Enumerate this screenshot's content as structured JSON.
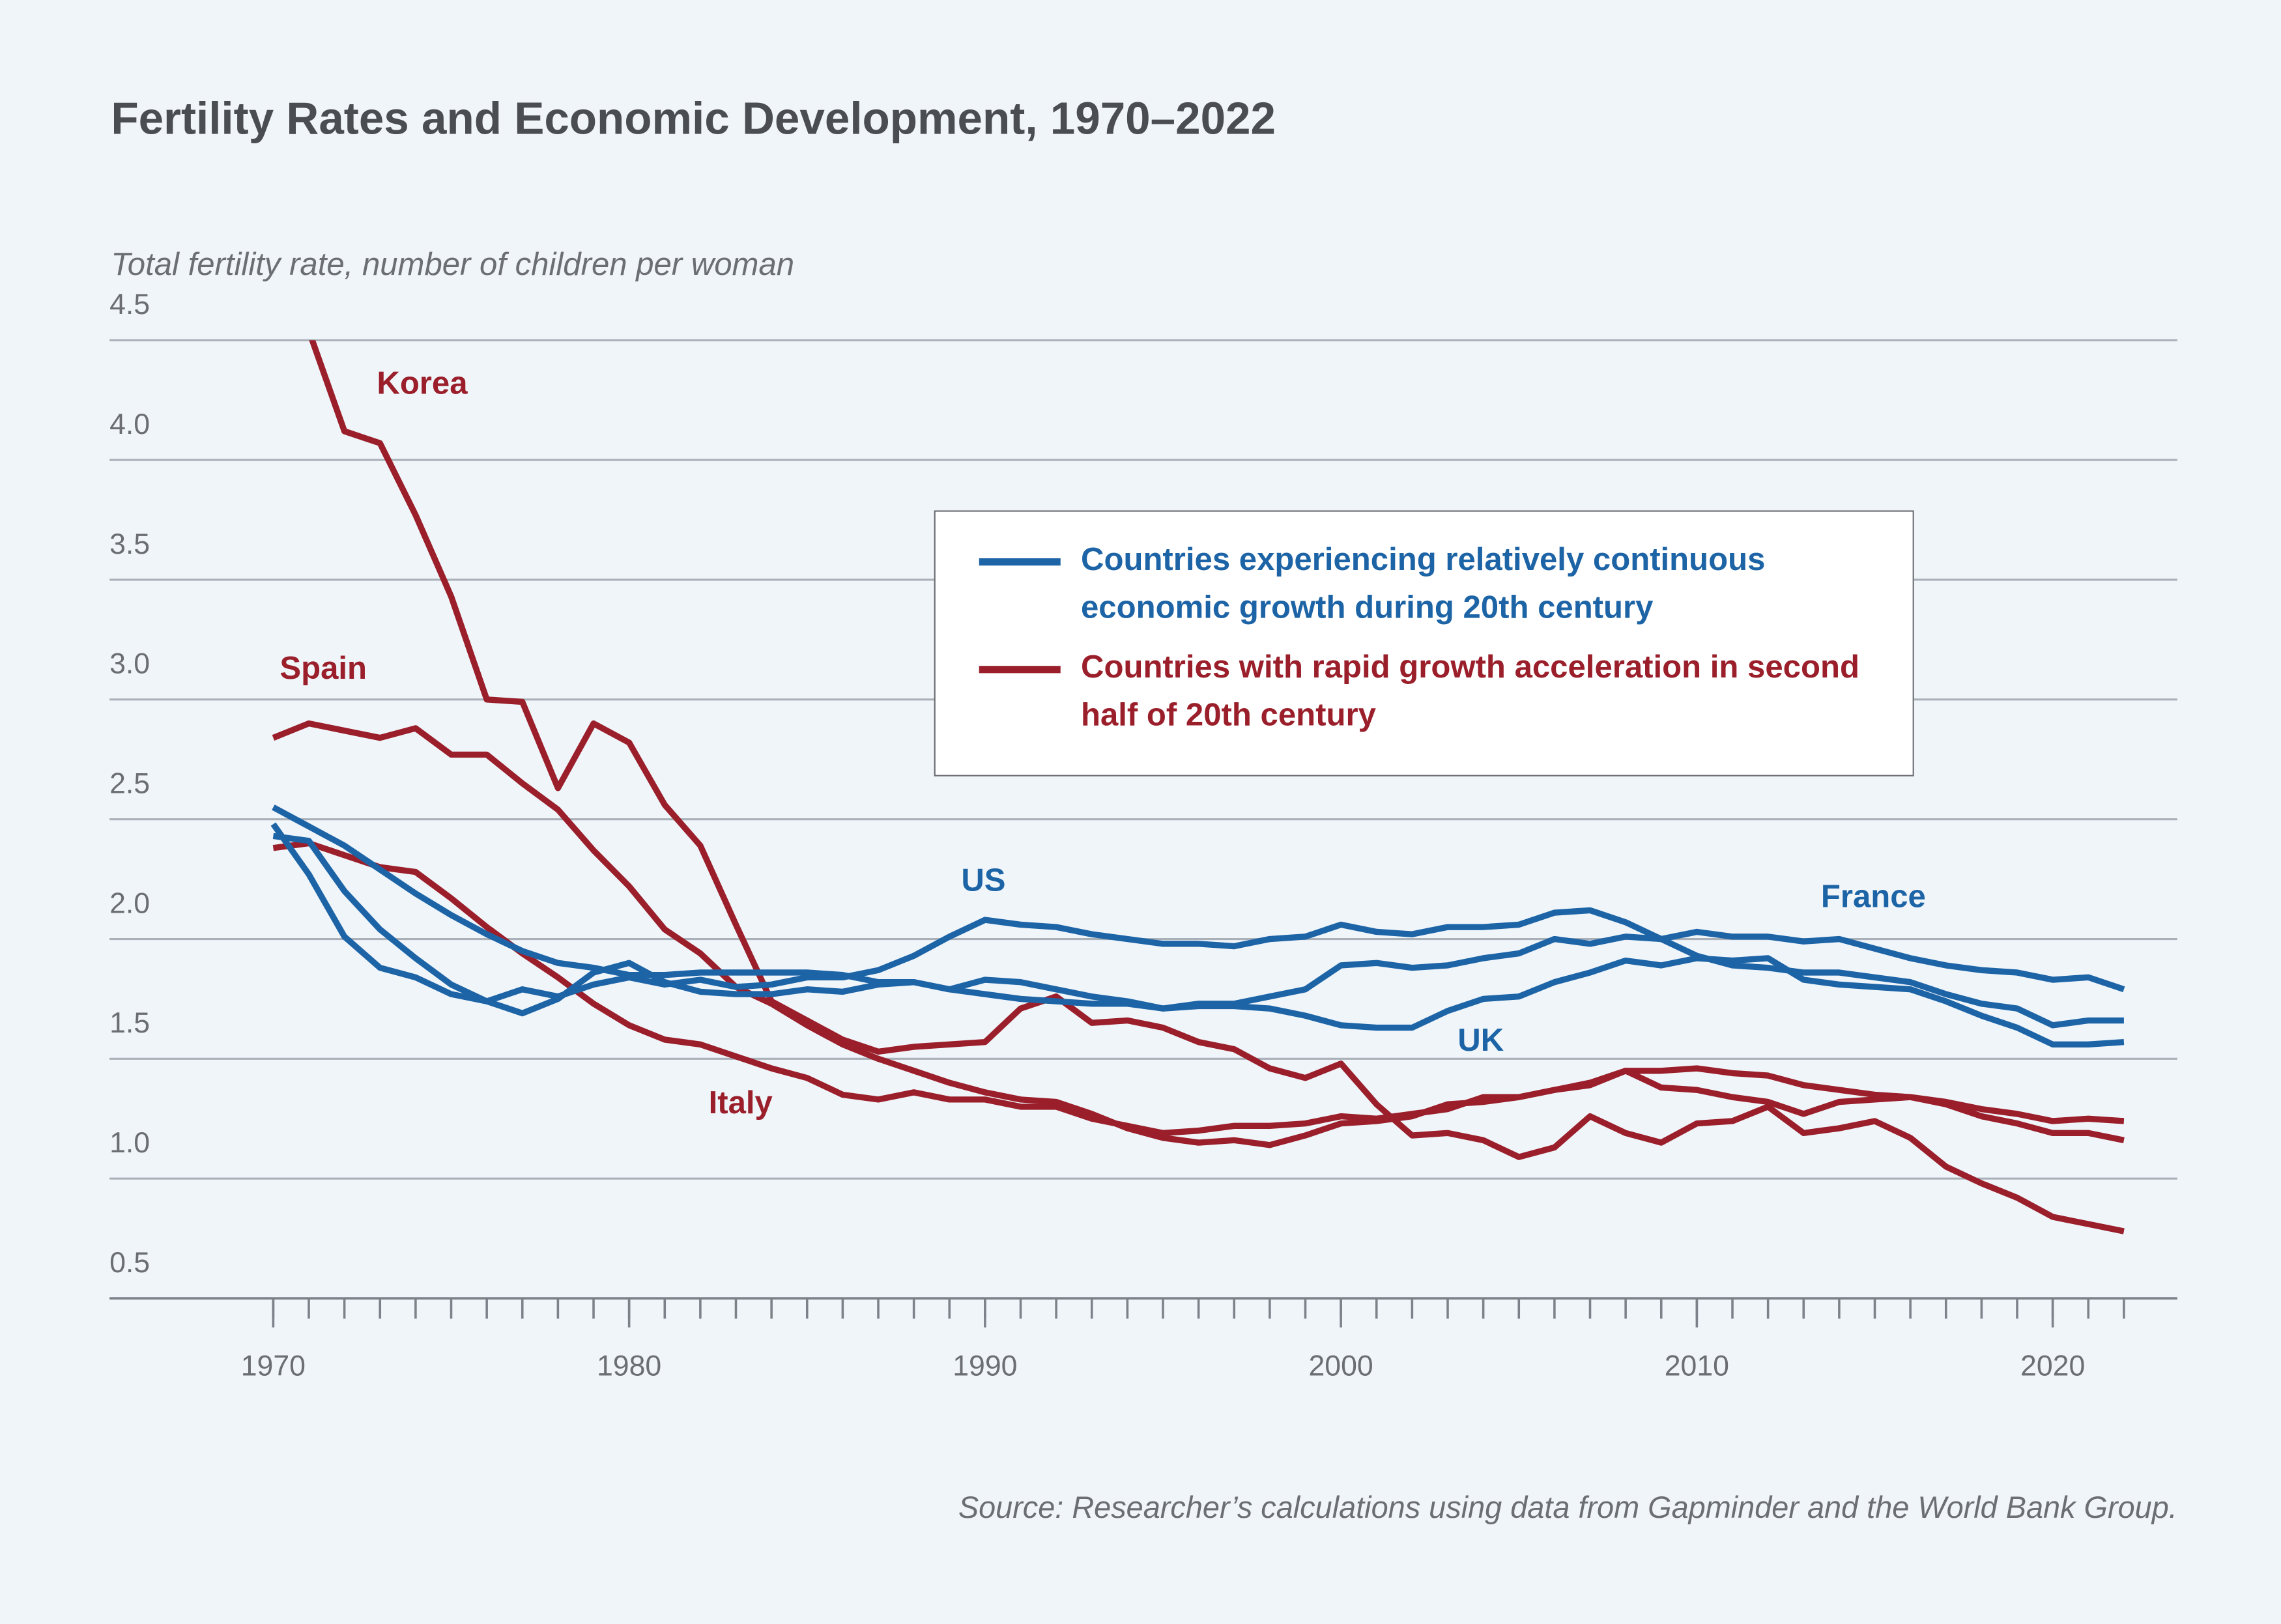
{
  "chart_data": {
    "type": "line",
    "title": "Fertility Rates and Economic Development, 1970–2022",
    "y_label": "Total fertility rate, number of children per woman",
    "source": "Source: Researcher’s calculations using data from Gapminder and the World Bank Group.",
    "x": [
      1970,
      1971,
      1972,
      1973,
      1974,
      1975,
      1976,
      1977,
      1978,
      1979,
      1980,
      1981,
      1982,
      1983,
      1984,
      1985,
      1986,
      1987,
      1988,
      1989,
      1990,
      1991,
      1992,
      1993,
      1994,
      1995,
      1996,
      1997,
      1998,
      1999,
      2000,
      2001,
      2002,
      2003,
      2004,
      2005,
      2006,
      2007,
      2008,
      2009,
      2010,
      2011,
      2012,
      2013,
      2014,
      2015,
      2016,
      2017,
      2018,
      2019,
      2020,
      2021,
      2022
    ],
    "xlim": [
      1965.4,
      2023.5
    ],
    "xticks": [
      1970,
      1980,
      1990,
      2000,
      2010,
      2020
    ],
    "ylim": [
      0.5,
      4.5
    ],
    "yticks": [
      0.5,
      {
        "value": 1,
        "label": "1.0"
      },
      1.5,
      {
        "value": 2,
        "label": "2.0"
      },
      2.5,
      {
        "value": 3,
        "label": "3.0"
      },
      3.5,
      {
        "value": 4,
        "label": "4.0"
      },
      4.5
    ],
    "grid": true,
    "legend": [
      {
        "label": "Countries experiencing relatively continuous economic growth during 20th century",
        "color": "#1d64a6"
      },
      {
        "label": "Countries with rapid growth acceleration in second half of 20th century",
        "color": "#9a1f2b"
      }
    ],
    "series": [
      {
        "name": "Korea",
        "color": "#9a1f2b",
        "values": [
          4.53,
          4.54,
          4.12,
          4.07,
          3.77,
          3.43,
          3.0,
          2.99,
          2.63,
          2.9,
          2.82,
          2.56,
          2.39,
          2.06,
          1.74,
          1.66,
          1.58,
          1.53,
          1.55,
          1.56,
          1.57,
          1.71,
          1.76,
          1.65,
          1.66,
          1.63,
          1.57,
          1.54,
          1.46,
          1.42,
          1.48,
          1.31,
          1.18,
          1.19,
          1.16,
          1.09,
          1.13,
          1.26,
          1.19,
          1.15,
          1.23,
          1.24,
          1.3,
          1.19,
          1.21,
          1.24,
          1.17,
          1.05,
          0.98,
          0.92,
          0.84,
          0.81,
          0.78
        ]
      },
      {
        "name": "Spain",
        "color": "#9a1f2b",
        "values": [
          2.84,
          2.9,
          2.87,
          2.84,
          2.88,
          2.77,
          2.77,
          2.65,
          2.54,
          2.37,
          2.22,
          2.04,
          1.94,
          1.8,
          1.73,
          1.64,
          1.56,
          1.5,
          1.45,
          1.4,
          1.36,
          1.33,
          1.32,
          1.27,
          1.21,
          1.17,
          1.15,
          1.16,
          1.14,
          1.18,
          1.23,
          1.24,
          1.26,
          1.31,
          1.32,
          1.34,
          1.37,
          1.39,
          1.45,
          1.38,
          1.37,
          1.34,
          1.32,
          1.27,
          1.32,
          1.33,
          1.34,
          1.31,
          1.26,
          1.23,
          1.19,
          1.19,
          1.16
        ]
      },
      {
        "name": "Italy",
        "color": "#9a1f2b",
        "values": [
          2.38,
          2.4,
          2.35,
          2.3,
          2.28,
          2.17,
          2.05,
          1.94,
          1.84,
          1.73,
          1.64,
          1.58,
          1.56,
          1.51,
          1.46,
          1.42,
          1.35,
          1.33,
          1.36,
          1.33,
          1.33,
          1.3,
          1.3,
          1.25,
          1.22,
          1.19,
          1.2,
          1.22,
          1.22,
          1.23,
          1.26,
          1.25,
          1.27,
          1.29,
          1.34,
          1.34,
          1.37,
          1.4,
          1.45,
          1.45,
          1.46,
          1.44,
          1.43,
          1.39,
          1.37,
          1.35,
          1.34,
          1.32,
          1.29,
          1.27,
          1.24,
          1.25,
          1.24
        ]
      },
      {
        "name": "US",
        "color": "#1d64a6",
        "values": [
          2.48,
          2.27,
          2.01,
          1.88,
          1.84,
          1.77,
          1.74,
          1.79,
          1.76,
          1.81,
          1.84,
          1.81,
          1.83,
          1.8,
          1.81,
          1.84,
          1.84,
          1.87,
          1.93,
          2.01,
          2.08,
          2.06,
          2.05,
          2.02,
          2.0,
          1.98,
          1.98,
          1.97,
          2.0,
          2.01,
          2.06,
          2.03,
          2.02,
          2.05,
          2.05,
          2.06,
          2.11,
          2.12,
          2.07,
          2.0,
          1.93,
          1.89,
          1.88,
          1.86,
          1.86,
          1.84,
          1.82,
          1.77,
          1.73,
          1.71,
          1.64,
          1.66,
          1.66
        ]
      },
      {
        "name": "France",
        "color": "#1d64a6",
        "values": [
          2.55,
          2.47,
          2.39,
          2.29,
          2.19,
          2.1,
          2.02,
          1.95,
          1.9,
          1.88,
          1.85,
          1.85,
          1.86,
          1.86,
          1.86,
          1.86,
          1.85,
          1.82,
          1.82,
          1.79,
          1.77,
          1.75,
          1.74,
          1.73,
          1.73,
          1.71,
          1.73,
          1.73,
          1.76,
          1.79,
          1.89,
          1.9,
          1.88,
          1.89,
          1.92,
          1.94,
          2.0,
          1.98,
          2.01,
          2.0,
          2.03,
          2.01,
          2.01,
          1.99,
          2.0,
          1.96,
          1.92,
          1.89,
          1.87,
          1.86,
          1.83,
          1.84,
          1.79
        ]
      },
      {
        "name": "UK",
        "color": "#1d64a6",
        "values": [
          2.43,
          2.41,
          2.2,
          2.04,
          1.92,
          1.81,
          1.74,
          1.69,
          1.75,
          1.86,
          1.9,
          1.82,
          1.78,
          1.77,
          1.77,
          1.79,
          1.78,
          1.81,
          1.82,
          1.79,
          1.83,
          1.82,
          1.79,
          1.76,
          1.74,
          1.71,
          1.72,
          1.72,
          1.71,
          1.68,
          1.64,
          1.63,
          1.63,
          1.7,
          1.75,
          1.76,
          1.82,
          1.86,
          1.91,
          1.89,
          1.92,
          1.91,
          1.92,
          1.83,
          1.81,
          1.8,
          1.79,
          1.74,
          1.68,
          1.63,
          1.56,
          1.56,
          1.57
        ]
      }
    ]
  }
}
